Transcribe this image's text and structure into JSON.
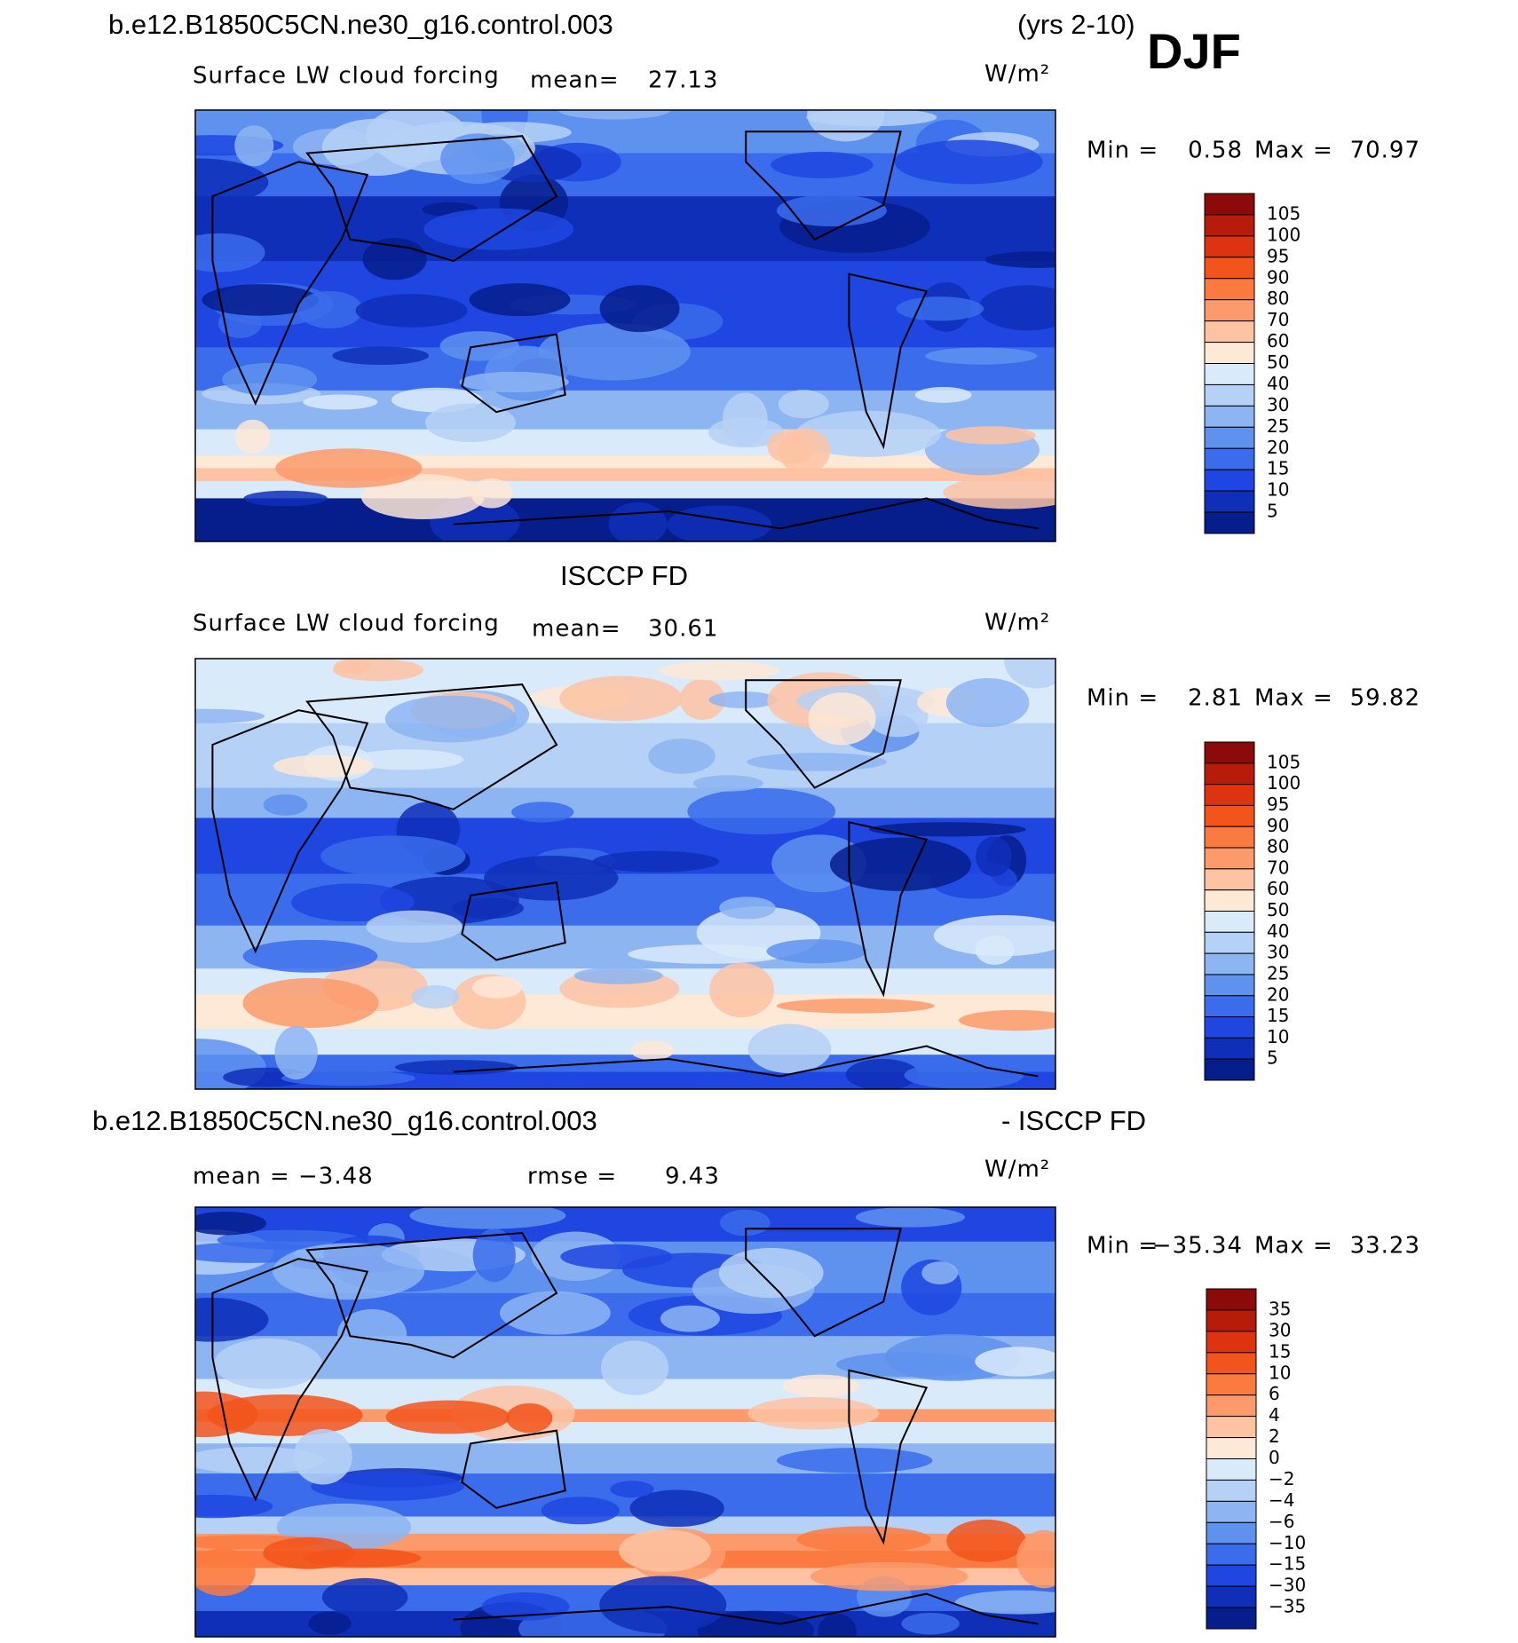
{
  "header": {
    "case": "b.e12.B1850C5CN.ne30_g16.control.003",
    "years": "(yrs 2-10)",
    "season": "DJF"
  },
  "panels": [
    {
      "variable": "Surface LW cloud forcing",
      "mean_label": "mean=",
      "mean": "27.13",
      "units": "W/m²",
      "min_label": "Min =",
      "min": "0.58",
      "max_label": "Max =",
      "max": "70.97",
      "colorbar_labels": [
        "105",
        "100",
        "95",
        "90",
        "80",
        "70",
        "60",
        "50",
        "40",
        "30",
        "25",
        "20",
        "15",
        "10",
        "5"
      ],
      "colors": [
        "#8c0a0a",
        "#b71c0b",
        "#dd3311",
        "#f2541b",
        "#fb7a40",
        "#fc9a6c",
        "#fdc3a2",
        "#fee8d6",
        "#d9eafa",
        "#b6d1f6",
        "#8db5f2",
        "#5f92ee",
        "#3a6ceb",
        "#1f46e0",
        "#0f2fb8",
        "#061d8c"
      ]
    },
    {
      "title": "ISCCP FD",
      "variable": "Surface LW cloud forcing",
      "mean_label": "mean=",
      "mean": "30.61",
      "units": "W/m²",
      "min_label": "Min =",
      "min": "2.81",
      "max_label": "Max =",
      "max": "59.82",
      "colorbar_labels": [
        "105",
        "100",
        "95",
        "90",
        "80",
        "70",
        "60",
        "50",
        "40",
        "30",
        "25",
        "20",
        "15",
        "10",
        "5"
      ],
      "colors": [
        "#8c0a0a",
        "#b71c0b",
        "#dd3311",
        "#f2541b",
        "#fb7a40",
        "#fc9a6c",
        "#fdc3a2",
        "#fee8d6",
        "#d9eafa",
        "#b6d1f6",
        "#8db5f2",
        "#5f92ee",
        "#3a6ceb",
        "#1f46e0",
        "#0f2fb8",
        "#061d8c"
      ]
    },
    {
      "title_left": "b.e12.B1850C5CN.ne30_g16.control.003",
      "title_right": "- ISCCP FD",
      "mean_label": "mean =",
      "mean": "−3.48",
      "rmse_label": "rmse =",
      "rmse": "9.43",
      "units": "W/m²",
      "min_label": "Min =",
      "min": "−35.34",
      "max_label": "Max =",
      "max": "33.23",
      "colorbar_labels": [
        "35",
        "30",
        "15",
        "10",
        "6",
        "4",
        "2",
        "0",
        "−2",
        "−4",
        "−6",
        "−10",
        "−15",
        "−30",
        "−35"
      ],
      "colors": [
        "#8c0a0a",
        "#b71c0b",
        "#dd3311",
        "#f2541b",
        "#fb7a40",
        "#fc9a6c",
        "#fdc3a2",
        "#fee8d6",
        "#d9eafa",
        "#b6d1f6",
        "#8db5f2",
        "#5f92ee",
        "#3a6ceb",
        "#1f46e0",
        "#0f2fb8",
        "#061d8c"
      ]
    }
  ]
}
